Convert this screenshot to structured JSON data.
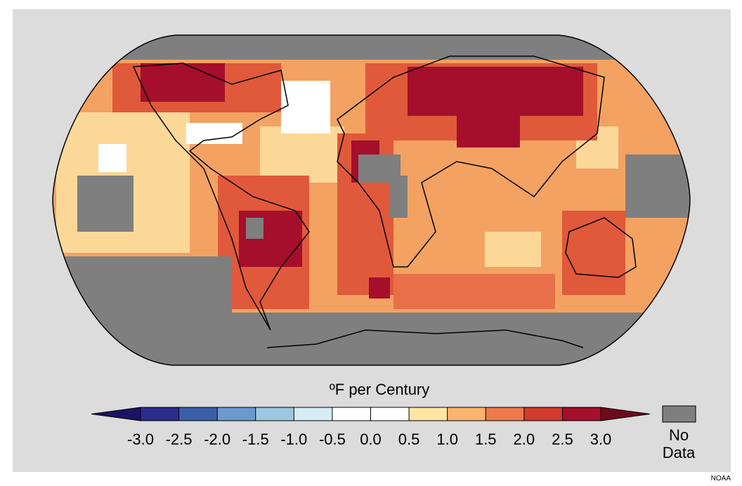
{
  "legend": {
    "title": "ºF per Century",
    "ticks": [
      {
        "value": -3.0,
        "label": "-3.0"
      },
      {
        "value": -2.5,
        "label": "-2.5"
      },
      {
        "value": -2.0,
        "label": "-2.0"
      },
      {
        "value": -1.5,
        "label": "-1.5"
      },
      {
        "value": -1.0,
        "label": "-1.0"
      },
      {
        "value": -0.5,
        "label": "-0.5"
      },
      {
        "value": 0.0,
        "label": "0.0"
      },
      {
        "value": 0.5,
        "label": "0.5"
      },
      {
        "value": 1.0,
        "label": "1.0"
      },
      {
        "value": 1.5,
        "label": "1.5"
      },
      {
        "value": 2.0,
        "label": "2.0"
      },
      {
        "value": 2.5,
        "label": "2.5"
      },
      {
        "value": 3.0,
        "label": "3.0"
      }
    ],
    "colors": [
      "#2b2c8c",
      "#3a5fa9",
      "#6a9acb",
      "#9cc7e0",
      "#d6ecf5",
      "#ffffff",
      "#ffffff",
      "#fde4a0",
      "#f8b36c",
      "#ec7a4b",
      "#d23a30",
      "#a50f2c"
    ],
    "under_color": "#1b1464",
    "over_color": "#6e0b1a",
    "no_data_label": [
      "No",
      "Data"
    ],
    "no_data_color": "#7f7f7f"
  },
  "credit": "NOAA"
}
